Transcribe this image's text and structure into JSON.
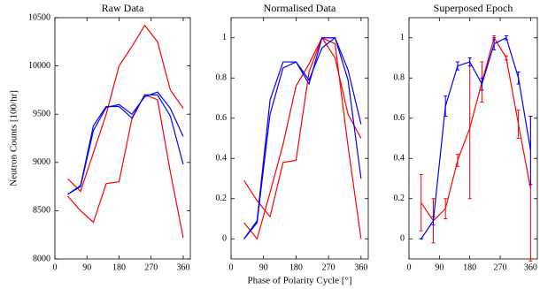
{
  "chart_data": [
    {
      "type": "line",
      "title": "Raw Data",
      "ylabel": "Neutron Counts [100/hr]",
      "x": [
        36,
        72,
        108,
        144,
        180,
        216,
        252,
        288,
        324,
        360
      ],
      "xlim": [
        0,
        380
      ],
      "xticks": [
        0,
        90,
        180,
        270,
        360
      ],
      "ylim": [
        8000,
        10500
      ],
      "yticks": [
        8000,
        8500,
        9000,
        9500,
        10000,
        10500
      ],
      "series": [
        {
          "color": "#ff0000",
          "values": [
            8830,
            8700,
            9100,
            9500,
            10000,
            10200,
            10420,
            10250,
            9750,
            9560
          ]
        },
        {
          "color": "#ff0000",
          "values": [
            8650,
            8500,
            8380,
            8780,
            8800,
            9450,
            9700,
            9650,
            8900,
            8220
          ]
        },
        {
          "color": "#0000ff",
          "values": [
            8670,
            8760,
            9380,
            9580,
            9580,
            9460,
            9700,
            9700,
            9480,
            8980
          ]
        },
        {
          "color": "#0000ff",
          "values": [
            8670,
            8750,
            9330,
            9570,
            9600,
            9500,
            9680,
            9730,
            9560,
            9270
          ]
        }
      ]
    },
    {
      "type": "line",
      "title": "Normalised Data",
      "xlabel": "Phase of Polarity Cycle [°]",
      "x": [
        36,
        72,
        108,
        144,
        180,
        216,
        252,
        288,
        324,
        360
      ],
      "xlim": [
        0,
        380
      ],
      "xticks": [
        0,
        90,
        180,
        270,
        360
      ],
      "ylim": [
        -0.1,
        1.1
      ],
      "yticks": [
        0,
        0.2,
        0.4,
        0.6,
        0.8,
        1
      ],
      "series": [
        {
          "color": "#ff0000",
          "values": [
            0.08,
            0,
            0.23,
            0.47,
            0.76,
            0.87,
            1,
            0.9,
            0.62,
            0.5
          ]
        },
        {
          "color": "#ff0000",
          "values": [
            0.29,
            0.19,
            0.11,
            0.38,
            0.39,
            0.83,
            1,
            0.97,
            0.46,
            0
          ]
        },
        {
          "color": "#0000ff",
          "values": [
            0,
            0.09,
            0.69,
            0.88,
            0.88,
            0.77,
            1,
            1,
            0.79,
            0.3
          ]
        },
        {
          "color": "#0000ff",
          "values": [
            0,
            0.08,
            0.62,
            0.85,
            0.88,
            0.79,
            0.95,
            1,
            0.84,
            0.57
          ]
        }
      ]
    },
    {
      "type": "line",
      "title": "Superposed Epoch",
      "x": [
        36,
        72,
        108,
        144,
        180,
        216,
        252,
        288,
        324,
        360
      ],
      "xlim": [
        0,
        380
      ],
      "xticks": [
        0,
        90,
        180,
        270,
        360
      ],
      "ylim": [
        -0.1,
        1.1
      ],
      "yticks": [
        0,
        0.2,
        0.4,
        0.6,
        0.8,
        1
      ],
      "series": [
        {
          "color": "#ff0000",
          "values": [
            0.18,
            0.09,
            0.15,
            0.39,
            0.55,
            0.78,
            1,
            0.9,
            0.57,
            0.25
          ],
          "errors": [
            0.14,
            0.11,
            0.05,
            0.03,
            0.35,
            0.1,
            0.01,
            0.01,
            0.07,
            0.36
          ]
        },
        {
          "color": "#0000ff",
          "values": [
            0,
            0.09,
            0.66,
            0.86,
            0.88,
            0.77,
            0.97,
            1,
            0.8,
            0.44
          ],
          "errors": [
            0,
            0.02,
            0.05,
            0.02,
            0.02,
            0.03,
            0.03,
            0.01,
            0.03,
            0.17
          ]
        }
      ]
    }
  ]
}
